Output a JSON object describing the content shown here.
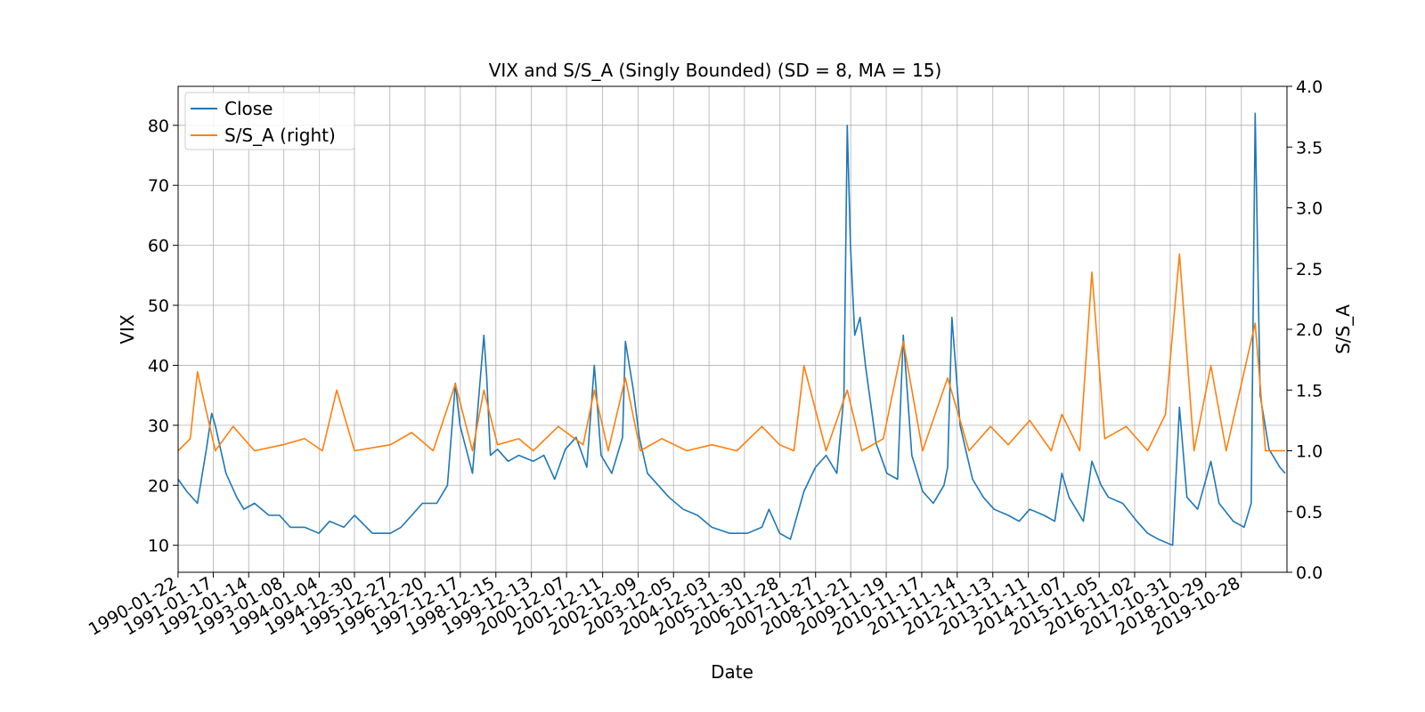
{
  "chart_data": {
    "type": "line",
    "title": "VIX and S/S_A (Singly Bounded) (SD = 8, MA = 15)",
    "xlabel": "Date",
    "ylabel": "VIX",
    "ylabel_right": "S/S_A",
    "ylim": [
      5.5,
      86.5
    ],
    "ylim_right": [
      0,
      4
    ],
    "yticks": [
      10,
      20,
      30,
      40,
      50,
      60,
      70,
      80
    ],
    "yticks_right": [
      "0.0",
      "0.5",
      "1.0",
      "1.5",
      "2.0",
      "2.5",
      "3.0",
      "3.5",
      "4.0"
    ],
    "x_ticks": [
      "1990-01-22",
      "1991-01-17",
      "1992-01-14",
      "1993-01-08",
      "1994-01-04",
      "1994-12-30",
      "1995-12-27",
      "1996-12-20",
      "1997-12-17",
      "1998-12-15",
      "1999-12-13",
      "2000-12-07",
      "2001-12-11",
      "2002-12-09",
      "2003-12-05",
      "2004-12-03",
      "2005-11-30",
      "2006-11-28",
      "2007-11-27",
      "2008-11-21",
      "2009-11-19",
      "2010-11-17",
      "2011-11-14",
      "2012-11-13",
      "2013-11-11",
      "2014-11-07",
      "2015-11-05",
      "2016-11-02",
      "2017-10-31",
      "2018-10-29",
      "2019-10-28"
    ],
    "grid": true,
    "legend_position": "top-left",
    "series": [
      {
        "name": "Close",
        "axis": "left",
        "color": "#1f77b4",
        "x": [
          1990.06,
          1990.3,
          1990.6,
          1990.85,
          1991.0,
          1991.1,
          1991.4,
          1991.7,
          1991.9,
          1992.2,
          1992.6,
          1992.9,
          1993.2,
          1993.6,
          1994.0,
          1994.3,
          1994.7,
          1995.0,
          1995.5,
          1996.0,
          1996.3,
          1996.6,
          1996.9,
          1997.3,
          1997.6,
          1997.82,
          1997.95,
          1998.3,
          1998.62,
          1998.7,
          1998.8,
          1999.0,
          1999.3,
          1999.6,
          2000.0,
          2000.3,
          2000.6,
          2000.9,
          2001.2,
          2001.5,
          2001.71,
          2001.9,
          2002.2,
          2002.5,
          2002.58,
          2002.8,
          2002.97,
          2003.2,
          2003.5,
          2003.8,
          2004.2,
          2004.6,
          2005.0,
          2005.5,
          2006.0,
          2006.4,
          2006.6,
          2006.9,
          2007.2,
          2007.58,
          2007.9,
          2008.2,
          2008.5,
          2008.7,
          2008.79,
          2008.88,
          2009.0,
          2009.15,
          2009.3,
          2009.6,
          2009.9,
          2010.2,
          2010.36,
          2010.6,
          2010.9,
          2011.2,
          2011.5,
          2011.6,
          2011.72,
          2011.95,
          2012.3,
          2012.6,
          2012.9,
          2013.3,
          2013.6,
          2013.9,
          2014.3,
          2014.6,
          2014.8,
          2015.0,
          2015.4,
          2015.64,
          2015.9,
          2016.1,
          2016.5,
          2016.9,
          2017.2,
          2017.5,
          2017.9,
          2018.09,
          2018.3,
          2018.6,
          2018.97,
          2019.2,
          2019.6,
          2019.9,
          2020.1,
          2020.21,
          2020.35,
          2020.6,
          2020.9,
          2021.05
        ],
        "values": [
          21,
          19,
          17,
          26,
          32,
          30,
          22,
          18,
          16,
          17,
          15,
          15,
          13,
          13,
          12,
          14,
          13,
          15,
          12,
          12,
          13,
          15,
          17,
          17,
          20,
          37,
          30,
          22,
          45,
          38,
          25,
          26,
          24,
          25,
          24,
          25,
          21,
          26,
          28,
          23,
          40,
          25,
          22,
          28,
          44,
          36,
          28,
          22,
          20,
          18,
          16,
          15,
          13,
          12,
          12,
          13,
          16,
          12,
          11,
          19,
          23,
          25,
          22,
          35,
          80,
          60,
          45,
          48,
          40,
          27,
          22,
          21,
          45,
          25,
          19,
          17,
          20,
          23,
          48,
          30,
          21,
          18,
          16,
          15,
          14,
          16,
          15,
          14,
          22,
          18,
          14,
          24,
          20,
          18,
          17,
          14,
          12,
          11,
          10,
          33,
          18,
          16,
          24,
          17,
          14,
          13,
          17,
          82,
          35,
          26,
          23,
          22
        ]
      },
      {
        "name": "S/S_A (right)",
        "axis": "right",
        "color": "#ff7f0e",
        "x": [
          1990.06,
          1990.4,
          1990.6,
          1991.1,
          1991.6,
          1992.2,
          1993.0,
          1993.6,
          1994.1,
          1994.5,
          1995.0,
          1996.0,
          1996.6,
          1997.2,
          1997.82,
          1998.3,
          1998.62,
          1999.0,
          1999.6,
          2000.0,
          2000.7,
          2001.4,
          2001.71,
          2002.1,
          2002.58,
          2003.0,
          2003.6,
          2004.3,
          2005.0,
          2005.7,
          2006.4,
          2006.9,
          2007.3,
          2007.58,
          2008.2,
          2008.79,
          2009.2,
          2009.8,
          2010.36,
          2010.9,
          2011.6,
          2012.2,
          2012.8,
          2013.3,
          2013.9,
          2014.5,
          2014.8,
          2015.3,
          2015.64,
          2016.0,
          2016.6,
          2017.2,
          2017.7,
          2018.09,
          2018.5,
          2018.97,
          2019.4,
          2019.9,
          2020.21,
          2020.5,
          2021.05
        ],
        "values": [
          1.0,
          1.1,
          1.65,
          1.0,
          1.2,
          1.0,
          1.05,
          1.1,
          1.0,
          1.5,
          1.0,
          1.05,
          1.15,
          1.0,
          1.55,
          1.0,
          1.5,
          1.05,
          1.1,
          1.0,
          1.2,
          1.05,
          1.5,
          1.0,
          1.6,
          1.0,
          1.1,
          1.0,
          1.05,
          1.0,
          1.2,
          1.05,
          1.0,
          1.7,
          1.0,
          1.5,
          1.0,
          1.1,
          1.9,
          1.0,
          1.6,
          1.0,
          1.2,
          1.05,
          1.25,
          1.0,
          1.3,
          1.0,
          2.47,
          1.1,
          1.2,
          1.0,
          1.3,
          2.62,
          1.0,
          1.7,
          1.0,
          1.65,
          2.05,
          1.0,
          1.0
        ]
      }
    ]
  }
}
